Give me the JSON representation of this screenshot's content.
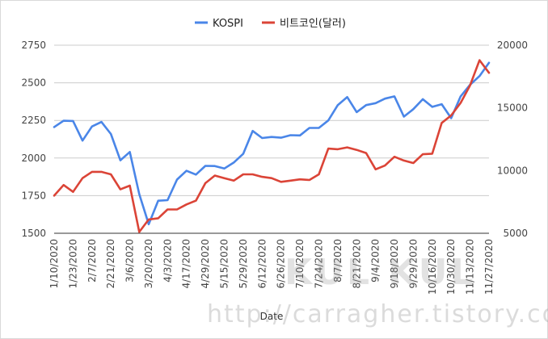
{
  "chart_data": {
    "type": "line",
    "xlabel": "Date",
    "legend_position": "top",
    "grid": true,
    "y_left_range": [
      1500,
      2750
    ],
    "y_left_ticks": [
      "1500",
      "1750",
      "2000",
      "2250",
      "2500",
      "2750"
    ],
    "y_right_range": [
      5000,
      20000
    ],
    "y_right_ticks": [
      "5000",
      "10000",
      "15000",
      "20000"
    ],
    "x_tick_labels": [
      "1/10/2020",
      "1/23/2020",
      "2/7/2020",
      "2/21/2020",
      "3/6/2020",
      "3/20/2020",
      "4/3/2020",
      "4/17/2020",
      "4/29/2020",
      "5/15/2020",
      "5/29/2020",
      "6/12/2020",
      "6/26/2020",
      "7/10/2020",
      "7/24/2020",
      "8/7/2020",
      "8/21/2020",
      "9/4/2020",
      "9/18/2020",
      "9/29/2020",
      "10/16/2020",
      "10/30/2020",
      "11/13/2020",
      "11/27/2020"
    ],
    "series": [
      {
        "name": "KOSPI",
        "color": "#4a86e8",
        "axis": "left",
        "values": [
          2206,
          2248,
          2246,
          2116,
          2210,
          2240,
          2160,
          1985,
          2040,
          1760,
          1560,
          1716,
          1720,
          1857,
          1915,
          1890,
          1948,
          1947,
          1930,
          1970,
          2028,
          2180,
          2133,
          2140,
          2135,
          2152,
          2150,
          2200,
          2200,
          2250,
          2352,
          2405,
          2305,
          2352,
          2365,
          2395,
          2410,
          2275,
          2325,
          2391,
          2340,
          2358,
          2265,
          2410,
          2487,
          2545,
          2633
        ]
      },
      {
        "name": "비트코인(달러)",
        "color": "#db4437",
        "axis": "right",
        "values": [
          8000,
          8850,
          8300,
          9400,
          9900,
          9900,
          9700,
          8500,
          8800,
          5100,
          6100,
          6200,
          6900,
          6900,
          7300,
          7600,
          9000,
          9600,
          9400,
          9200,
          9700,
          9700,
          9500,
          9400,
          9100,
          9200,
          9300,
          9250,
          9700,
          11750,
          11700,
          11850,
          11650,
          11400,
          10100,
          10400,
          11100,
          10800,
          10600,
          11300,
          11350,
          13800,
          14400,
          15400,
          16800,
          18800,
          17800
        ]
      }
    ]
  },
  "watermark": {
    "line1": "KUL KUL",
    "line2": "http://carragher.tistory.com"
  }
}
